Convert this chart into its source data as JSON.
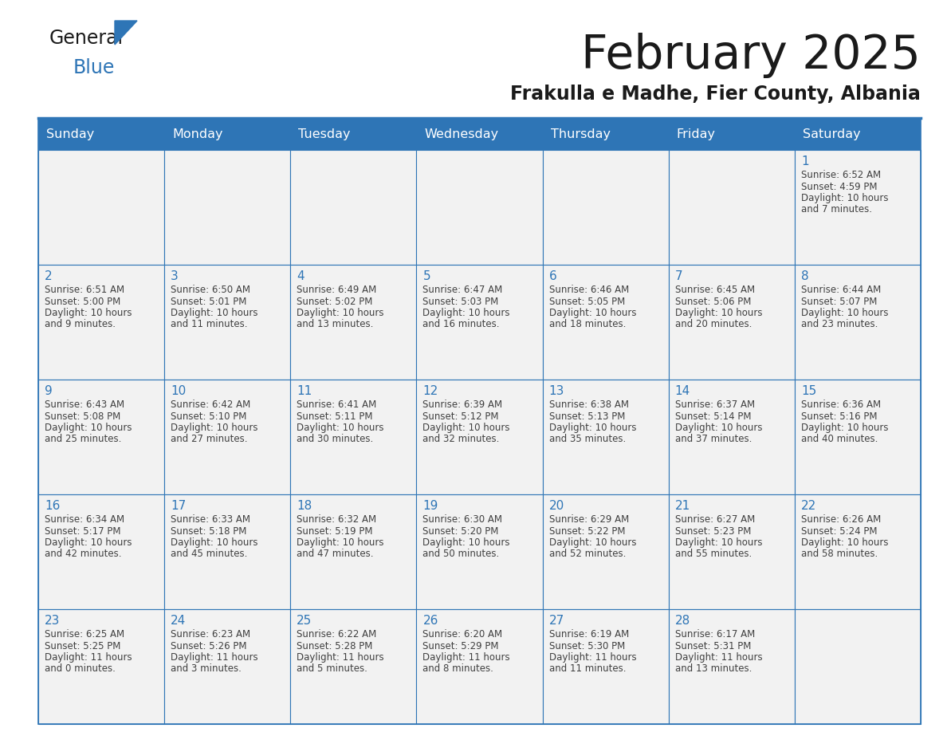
{
  "title": "February 2025",
  "subtitle": "Frakulla e Madhe, Fier County, Albania",
  "header_color": "#2E75B6",
  "header_text_color": "#FFFFFF",
  "cell_bg_color": "#F2F2F2",
  "border_color": "#2E75B6",
  "day_headers": [
    "Sunday",
    "Monday",
    "Tuesday",
    "Wednesday",
    "Thursday",
    "Friday",
    "Saturday"
  ],
  "title_color": "#1a1a1a",
  "subtitle_color": "#1a1a1a",
  "day_num_color": "#2E75B6",
  "cell_text_color": "#404040",
  "weeks": [
    [
      {
        "day": null
      },
      {
        "day": null
      },
      {
        "day": null
      },
      {
        "day": null
      },
      {
        "day": null
      },
      {
        "day": null
      },
      {
        "day": 1,
        "sunrise": "6:52 AM",
        "sunset": "4:59 PM",
        "daylight": "10 hours and 7 minutes."
      }
    ],
    [
      {
        "day": 2,
        "sunrise": "6:51 AM",
        "sunset": "5:00 PM",
        "daylight": "10 hours and 9 minutes."
      },
      {
        "day": 3,
        "sunrise": "6:50 AM",
        "sunset": "5:01 PM",
        "daylight": "10 hours and 11 minutes."
      },
      {
        "day": 4,
        "sunrise": "6:49 AM",
        "sunset": "5:02 PM",
        "daylight": "10 hours and 13 minutes."
      },
      {
        "day": 5,
        "sunrise": "6:47 AM",
        "sunset": "5:03 PM",
        "daylight": "10 hours and 16 minutes."
      },
      {
        "day": 6,
        "sunrise": "6:46 AM",
        "sunset": "5:05 PM",
        "daylight": "10 hours and 18 minutes."
      },
      {
        "day": 7,
        "sunrise": "6:45 AM",
        "sunset": "5:06 PM",
        "daylight": "10 hours and 20 minutes."
      },
      {
        "day": 8,
        "sunrise": "6:44 AM",
        "sunset": "5:07 PM",
        "daylight": "10 hours and 23 minutes."
      }
    ],
    [
      {
        "day": 9,
        "sunrise": "6:43 AM",
        "sunset": "5:08 PM",
        "daylight": "10 hours and 25 minutes."
      },
      {
        "day": 10,
        "sunrise": "6:42 AM",
        "sunset": "5:10 PM",
        "daylight": "10 hours and 27 minutes."
      },
      {
        "day": 11,
        "sunrise": "6:41 AM",
        "sunset": "5:11 PM",
        "daylight": "10 hours and 30 minutes."
      },
      {
        "day": 12,
        "sunrise": "6:39 AM",
        "sunset": "5:12 PM",
        "daylight": "10 hours and 32 minutes."
      },
      {
        "day": 13,
        "sunrise": "6:38 AM",
        "sunset": "5:13 PM",
        "daylight": "10 hours and 35 minutes."
      },
      {
        "day": 14,
        "sunrise": "6:37 AM",
        "sunset": "5:14 PM",
        "daylight": "10 hours and 37 minutes."
      },
      {
        "day": 15,
        "sunrise": "6:36 AM",
        "sunset": "5:16 PM",
        "daylight": "10 hours and 40 minutes."
      }
    ],
    [
      {
        "day": 16,
        "sunrise": "6:34 AM",
        "sunset": "5:17 PM",
        "daylight": "10 hours and 42 minutes."
      },
      {
        "day": 17,
        "sunrise": "6:33 AM",
        "sunset": "5:18 PM",
        "daylight": "10 hours and 45 minutes."
      },
      {
        "day": 18,
        "sunrise": "6:32 AM",
        "sunset": "5:19 PM",
        "daylight": "10 hours and 47 minutes."
      },
      {
        "day": 19,
        "sunrise": "6:30 AM",
        "sunset": "5:20 PM",
        "daylight": "10 hours and 50 minutes."
      },
      {
        "day": 20,
        "sunrise": "6:29 AM",
        "sunset": "5:22 PM",
        "daylight": "10 hours and 52 minutes."
      },
      {
        "day": 21,
        "sunrise": "6:27 AM",
        "sunset": "5:23 PM",
        "daylight": "10 hours and 55 minutes."
      },
      {
        "day": 22,
        "sunrise": "6:26 AM",
        "sunset": "5:24 PM",
        "daylight": "10 hours and 58 minutes."
      }
    ],
    [
      {
        "day": 23,
        "sunrise": "6:25 AM",
        "sunset": "5:25 PM",
        "daylight": "11 hours and 0 minutes."
      },
      {
        "day": 24,
        "sunrise": "6:23 AM",
        "sunset": "5:26 PM",
        "daylight": "11 hours and 3 minutes."
      },
      {
        "day": 25,
        "sunrise": "6:22 AM",
        "sunset": "5:28 PM",
        "daylight": "11 hours and 5 minutes."
      },
      {
        "day": 26,
        "sunrise": "6:20 AM",
        "sunset": "5:29 PM",
        "daylight": "11 hours and 8 minutes."
      },
      {
        "day": 27,
        "sunrise": "6:19 AM",
        "sunset": "5:30 PM",
        "daylight": "11 hours and 11 minutes."
      },
      {
        "day": 28,
        "sunrise": "6:17 AM",
        "sunset": "5:31 PM",
        "daylight": "11 hours and 13 minutes."
      },
      {
        "day": null
      }
    ]
  ]
}
